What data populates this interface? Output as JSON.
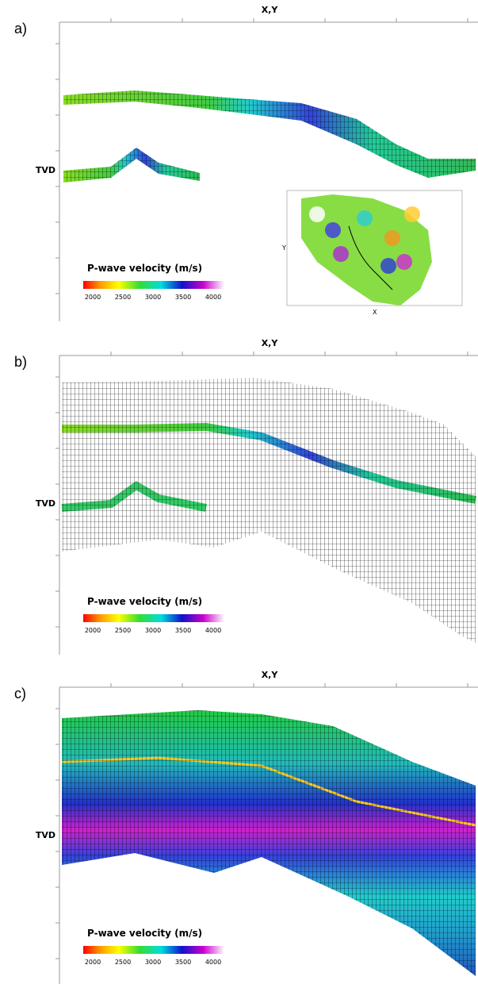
{
  "axis_top": "X,Y",
  "axis_left": "TVD",
  "colorbar": {
    "title": "P-wave velocity (m/s)",
    "ticks": [
      "2000",
      "2500",
      "3000",
      "3500",
      "4000"
    ]
  },
  "panels": [
    {
      "label": "a)"
    },
    {
      "label": "b)"
    },
    {
      "label": "c)"
    }
  ],
  "inset": {
    "x_label": "X",
    "y_label": "Y"
  }
}
